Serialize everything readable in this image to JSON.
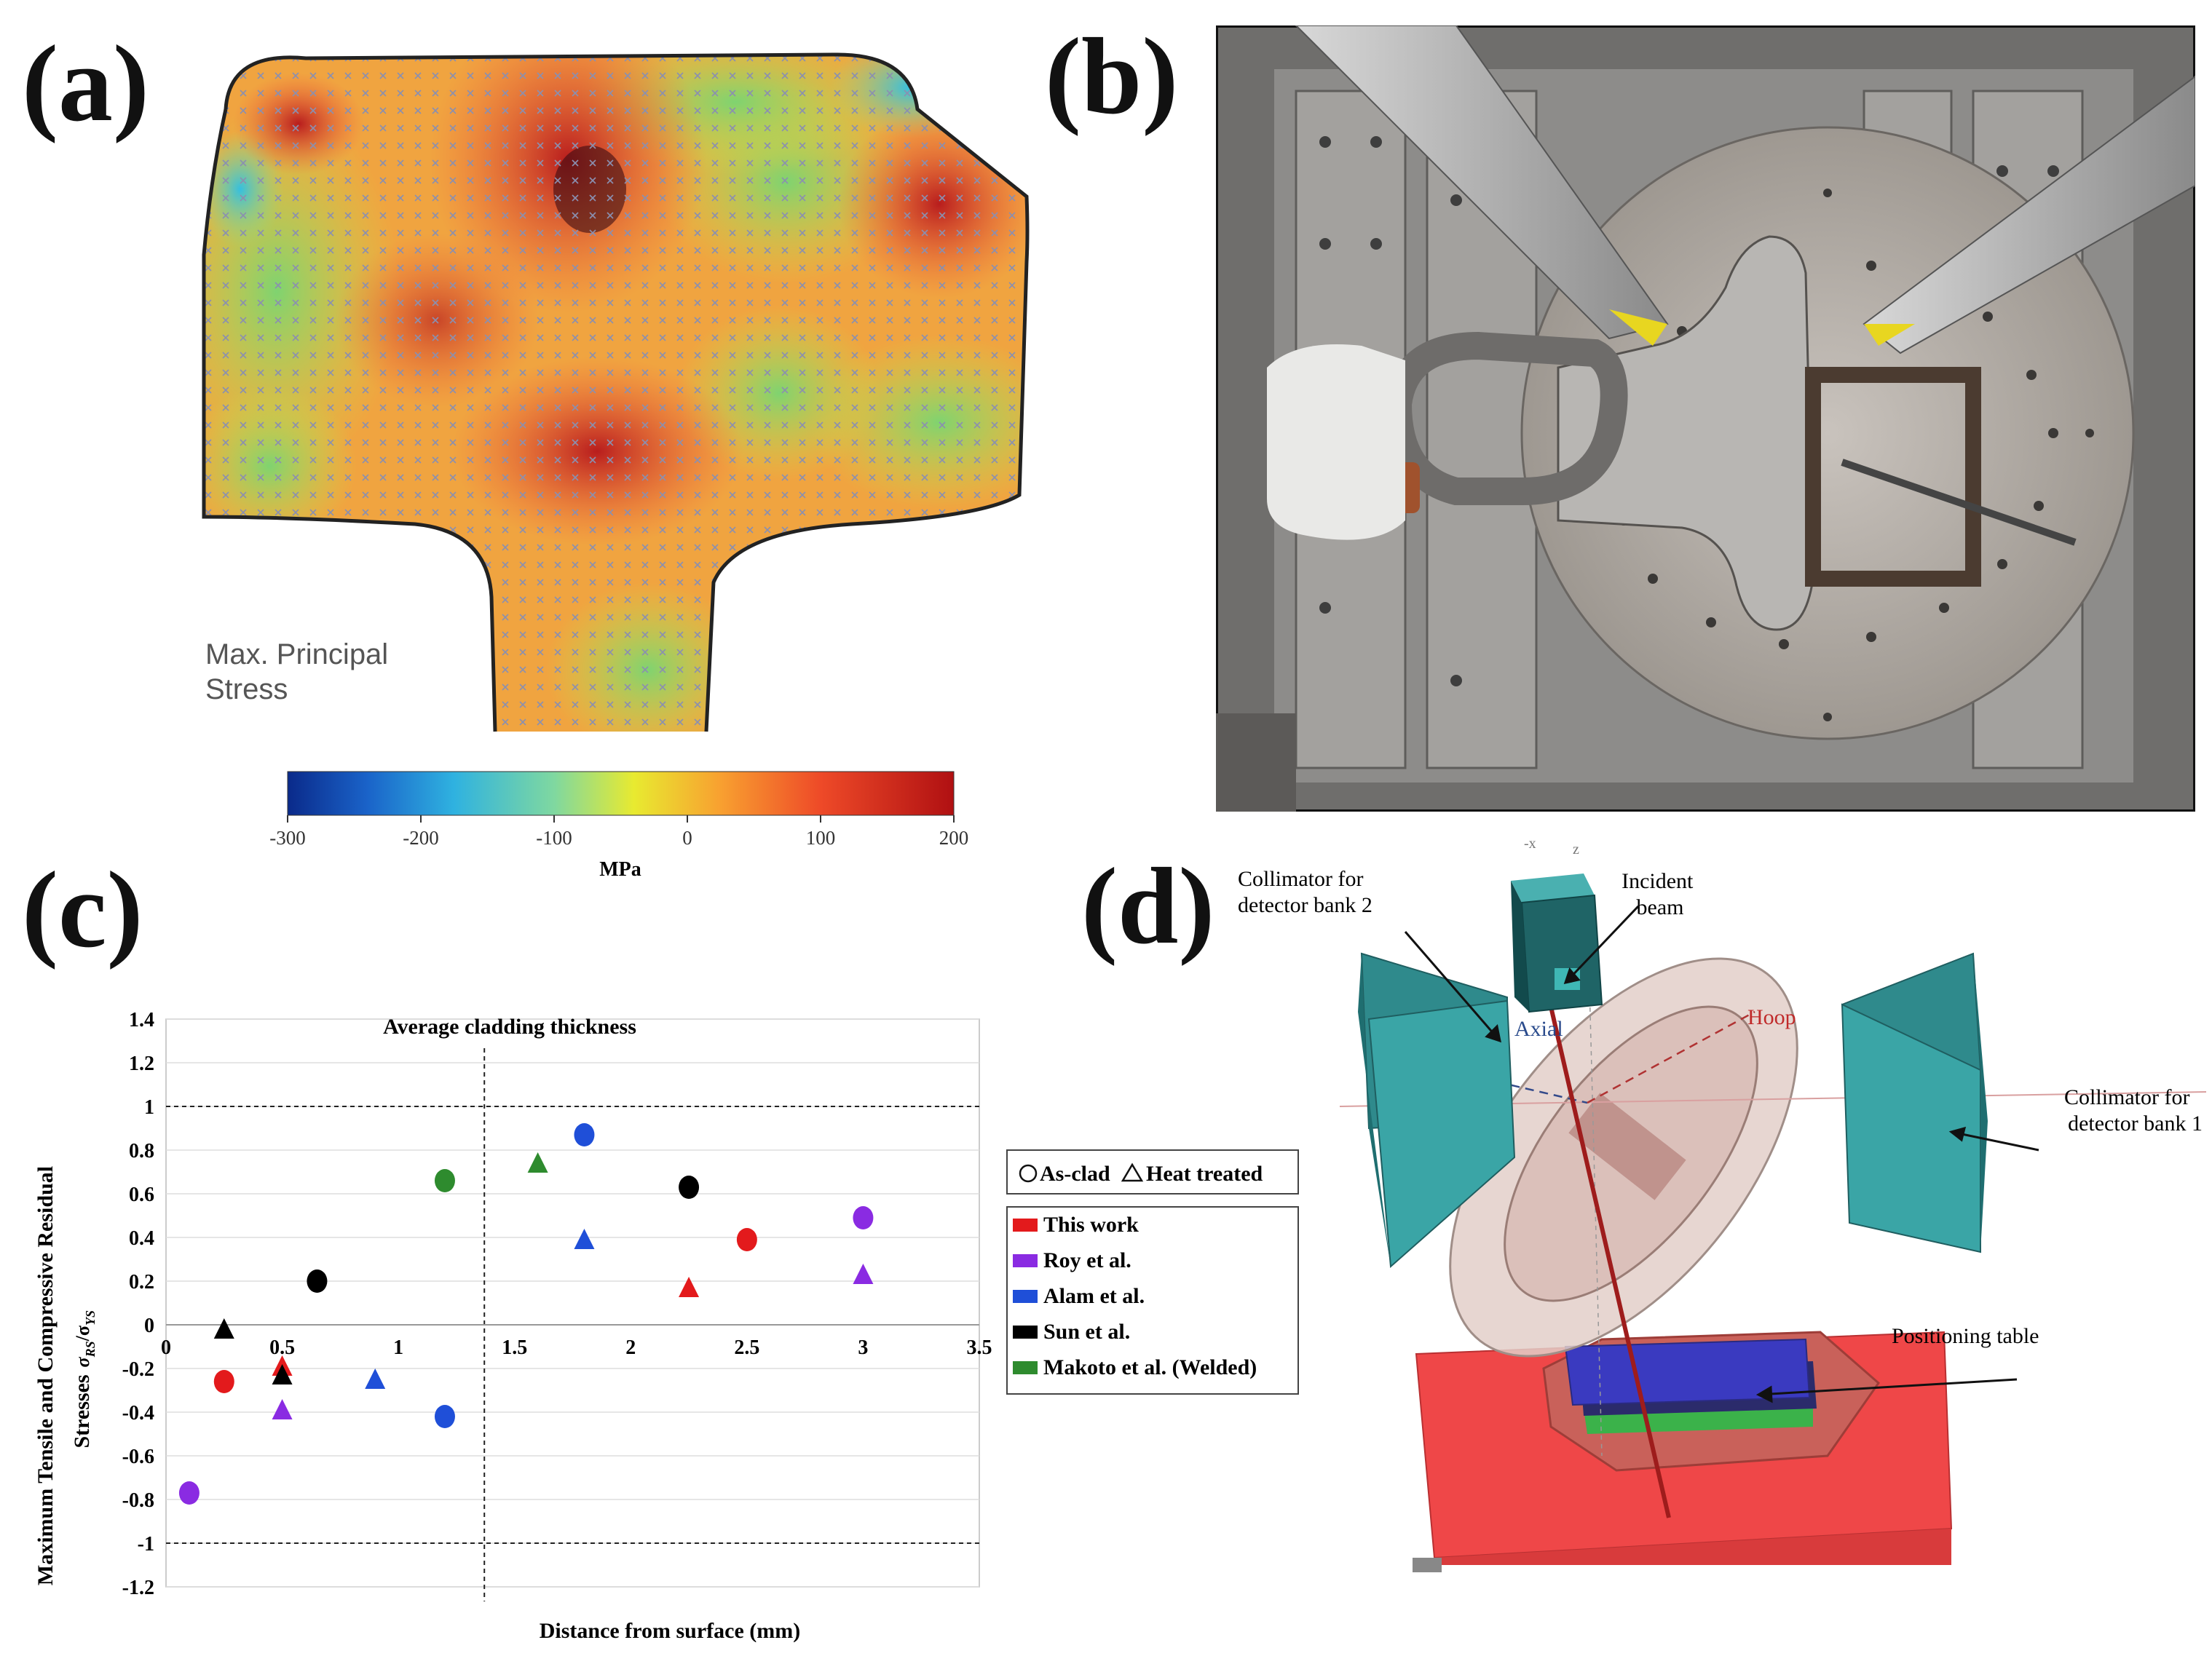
{
  "panels": {
    "a": {
      "label": "(a)",
      "annotation": [
        "Max. Principal",
        "Stress"
      ],
      "colorbar": {
        "ticks": [
          "-300",
          "-200",
          "-100",
          "0",
          "100",
          "200"
        ],
        "unit": "MPa",
        "range": [
          -300,
          200
        ]
      }
    },
    "b": {
      "label": "(b)"
    },
    "c": {
      "label": "(c)"
    },
    "d": {
      "label": "(d)",
      "annotations": {
        "collimator2": [
          "Collimator for",
          "detector bank 2"
        ],
        "incident": [
          "Incident",
          "beam"
        ],
        "axial": "Axial",
        "hoop": "Hoop",
        "collimator1": [
          "Collimator for",
          "detector bank 1"
        ],
        "positioning": "Positioning table",
        "axis_x": "-x",
        "axis_z": "z"
      }
    }
  },
  "chart_data": {
    "type": "scatter",
    "title": "Average cladding thickness",
    "xlabel": "Distance from surface (mm)",
    "ylabel_line1": "Maximum Tensile and Compressive Residual",
    "ylabel_line2": "Stresses",
    "xlim": [
      0,
      3.5
    ],
    "ylim": [
      -1.2,
      1.4
    ],
    "x_ticks": [
      "0",
      "0.5",
      "1",
      "1.5",
      "2",
      "2.5",
      "3",
      "3.5"
    ],
    "y_ticks": [
      "1.4",
      "1.2",
      "1",
      "0.8",
      "0.6",
      "0.4",
      "0.2",
      "0",
      "-0.2",
      "-0.4",
      "-0.6",
      "-0.8",
      "-1",
      "-1.2"
    ],
    "reference_lines": {
      "horizontal": [
        1,
        -1
      ],
      "vertical": 1.37
    },
    "marker_legend": {
      "circle": "As-clad",
      "triangle": "Heat treated"
    },
    "series": [
      {
        "name": "This work",
        "color": "#e31a1c",
        "as_clad": [
          [
            0.25,
            -0.26
          ],
          [
            2.5,
            0.39
          ]
        ],
        "heat_treated": [
          [
            0.5,
            -0.19
          ],
          [
            2.25,
            0.17
          ]
        ]
      },
      {
        "name": "Roy et al.",
        "color": "#8a2be2",
        "as_clad": [
          [
            0.1,
            -0.77
          ],
          [
            3.0,
            0.49
          ]
        ],
        "heat_treated": [
          [
            0.5,
            -0.39
          ],
          [
            3.0,
            0.23
          ]
        ]
      },
      {
        "name": "Alam et al.",
        "color": "#1f4fd8",
        "as_clad": [
          [
            1.2,
            -0.42
          ],
          [
            1.8,
            0.87
          ]
        ],
        "heat_treated": [
          [
            0.9,
            -0.25
          ],
          [
            1.8,
            0.39
          ]
        ]
      },
      {
        "name": "Sun et al.",
        "color": "#000000",
        "as_clad": [
          [
            0.65,
            0.2
          ],
          [
            2.25,
            0.63
          ]
        ],
        "heat_treated": [
          [
            0.25,
            -0.02
          ],
          [
            0.5,
            -0.23
          ]
        ]
      },
      {
        "name": "Makoto et al. (Welded)",
        "color": "#2e8b2e",
        "as_clad": [
          [
            1.2,
            0.66
          ]
        ],
        "heat_treated": [
          [
            1.6,
            0.74
          ]
        ]
      }
    ]
  }
}
